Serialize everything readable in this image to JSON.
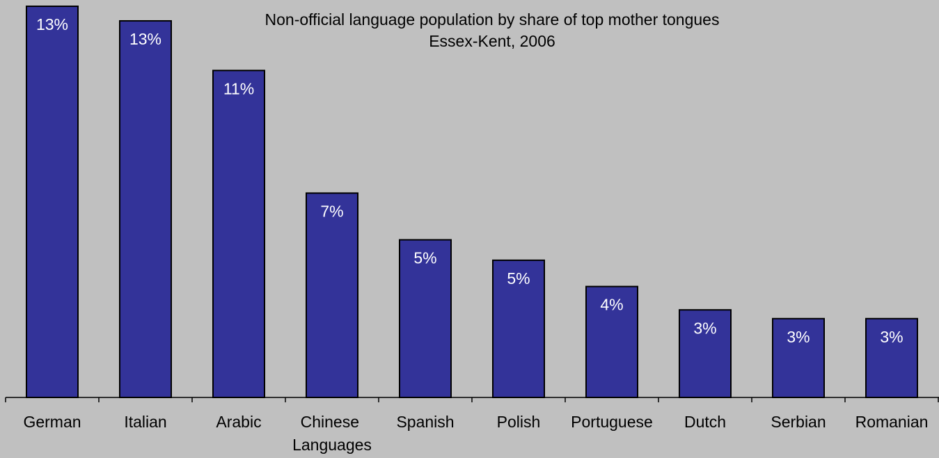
{
  "chart_data": {
    "type": "bar",
    "subtitle": [
      "Non-official language population by share of top mother tongues",
      "Essex-Kent, 2006"
    ],
    "categories": [
      "German",
      "Italian",
      "Arabic",
      "Chinese Languages",
      "Spanish",
      "Polish",
      "Portuguese",
      "Dutch",
      "Serbian",
      "Romanian"
    ],
    "values": [
      13.4,
      12.9,
      11.2,
      7.0,
      5.4,
      4.7,
      3.8,
      3.0,
      2.7,
      2.7
    ],
    "value_labels": [
      "13%",
      "13%",
      "11%",
      "7%",
      "5%",
      "5%",
      "4%",
      "3%",
      "3%",
      "3%"
    ],
    "color": "#333399",
    "ylim": [
      0,
      13.4
    ]
  }
}
